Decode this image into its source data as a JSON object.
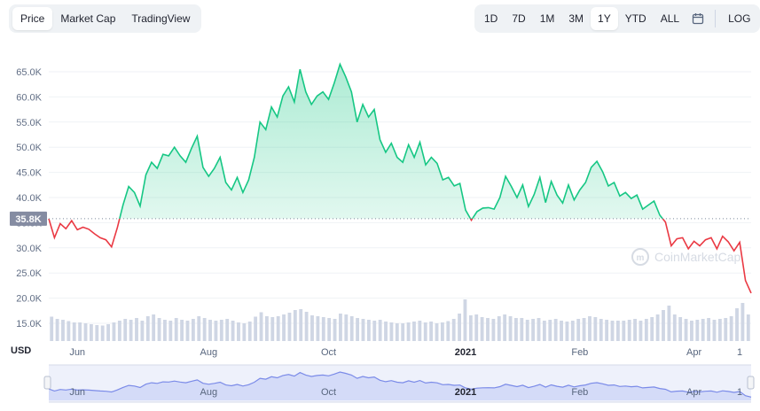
{
  "tabs": [
    {
      "label": "Price",
      "active": true
    },
    {
      "label": "Market Cap",
      "active": false
    },
    {
      "label": "TradingView",
      "active": false
    }
  ],
  "ranges": [
    {
      "label": "1D",
      "active": false
    },
    {
      "label": "7D",
      "active": false
    },
    {
      "label": "1M",
      "active": false
    },
    {
      "label": "3M",
      "active": false
    },
    {
      "label": "1Y",
      "active": true
    },
    {
      "label": "YTD",
      "active": false
    },
    {
      "label": "ALL",
      "active": false
    }
  ],
  "log_label": "LOG",
  "currency_label": "USD",
  "watermark": "CoinMarketCap",
  "colors": {
    "up": "#16c784",
    "down": "#ea3943",
    "volume": "#cfd6e4",
    "navigator": "#7b8be8"
  },
  "chart_data": {
    "type": "line",
    "title": "",
    "xlabel": "",
    "ylabel": "",
    "ylim": [
      14000,
      70000
    ],
    "yticks": [
      "15.0K",
      "20.0K",
      "25.0K",
      "30.0K",
      "35.0K",
      "40.0K",
      "45.0K",
      "50.0K",
      "55.0K",
      "60.0K",
      "65.0K"
    ],
    "reference": {
      "label": "35.8K",
      "value": 35800
    },
    "x_tick_labels": [
      {
        "label": "Jun",
        "index": 5,
        "bold": false
      },
      {
        "label": "Aug",
        "index": 28,
        "bold": false
      },
      {
        "label": "Oct",
        "index": 49,
        "bold": false
      },
      {
        "label": "2021",
        "index": 73,
        "bold": true
      },
      {
        "label": "Feb",
        "index": 93,
        "bold": false
      },
      {
        "label": "Apr",
        "index": 113,
        "bold": false
      },
      {
        "label": "1",
        "index": 121,
        "bold": false
      }
    ],
    "values": [
      35800,
      32000,
      34800,
      33800,
      35400,
      33600,
      34100,
      33700,
      32800,
      32000,
      31600,
      30200,
      34000,
      38500,
      42200,
      41000,
      38300,
      44500,
      47000,
      45800,
      48600,
      48300,
      50000,
      48300,
      47000,
      49800,
      52200,
      46000,
      44200,
      45800,
      48000,
      43000,
      41500,
      44000,
      41000,
      43500,
      48000,
      55000,
      53500,
      58000,
      56000,
      60200,
      62000,
      59000,
      65500,
      61000,
      58500,
      60200,
      61000,
      59500,
      62800,
      66500,
      64000,
      61000,
      55000,
      58500,
      56000,
      57500,
      51500,
      49000,
      50800,
      48000,
      47000,
      50500,
      48000,
      51000,
      46500,
      48000,
      46800,
      43500,
      44000,
      42300,
      42800,
      37500,
      35500,
      37200,
      37900,
      38000,
      37700,
      40000,
      44200,
      42200,
      40000,
      42500,
      38200,
      40600,
      44000,
      39000,
      43200,
      40500,
      38900,
      42500,
      39500,
      41500,
      43000,
      46000,
      47200,
      45100,
      42300,
      43000,
      40300,
      41000,
      39800,
      40500,
      37700,
      38500,
      39300,
      36500,
      35100,
      30400,
      31800,
      32000,
      29800,
      31300,
      30400,
      31600,
      32000,
      29800,
      32300,
      31200,
      29400,
      31100,
      23500,
      21000
    ],
    "volume": [
      0.55,
      0.5,
      0.48,
      0.45,
      0.42,
      0.42,
      0.4,
      0.38,
      0.36,
      0.35,
      0.38,
      0.42,
      0.46,
      0.5,
      0.48,
      0.52,
      0.46,
      0.56,
      0.6,
      0.52,
      0.48,
      0.46,
      0.52,
      0.48,
      0.46,
      0.5,
      0.56,
      0.52,
      0.48,
      0.46,
      0.48,
      0.5,
      0.46,
      0.42,
      0.4,
      0.44,
      0.55,
      0.65,
      0.56,
      0.54,
      0.56,
      0.6,
      0.64,
      0.7,
      0.72,
      0.66,
      0.58,
      0.56,
      0.54,
      0.52,
      0.5,
      0.62,
      0.6,
      0.56,
      0.52,
      0.5,
      0.48,
      0.46,
      0.48,
      0.44,
      0.42,
      0.4,
      0.4,
      0.42,
      0.44,
      0.46,
      0.42,
      0.44,
      0.4,
      0.42,
      0.45,
      0.5,
      0.62,
      0.94,
      0.58,
      0.6,
      0.54,
      0.52,
      0.5,
      0.56,
      0.6,
      0.56,
      0.52,
      0.52,
      0.48,
      0.5,
      0.52,
      0.46,
      0.48,
      0.5,
      0.46,
      0.44,
      0.46,
      0.5,
      0.52,
      0.56,
      0.54,
      0.5,
      0.48,
      0.46,
      0.46,
      0.46,
      0.48,
      0.5,
      0.46,
      0.5,
      0.54,
      0.6,
      0.7,
      0.8,
      0.6,
      0.54,
      0.5,
      0.46,
      0.48,
      0.5,
      0.52,
      0.48,
      0.5,
      0.52,
      0.56,
      0.74,
      0.86,
      0.6
    ]
  }
}
